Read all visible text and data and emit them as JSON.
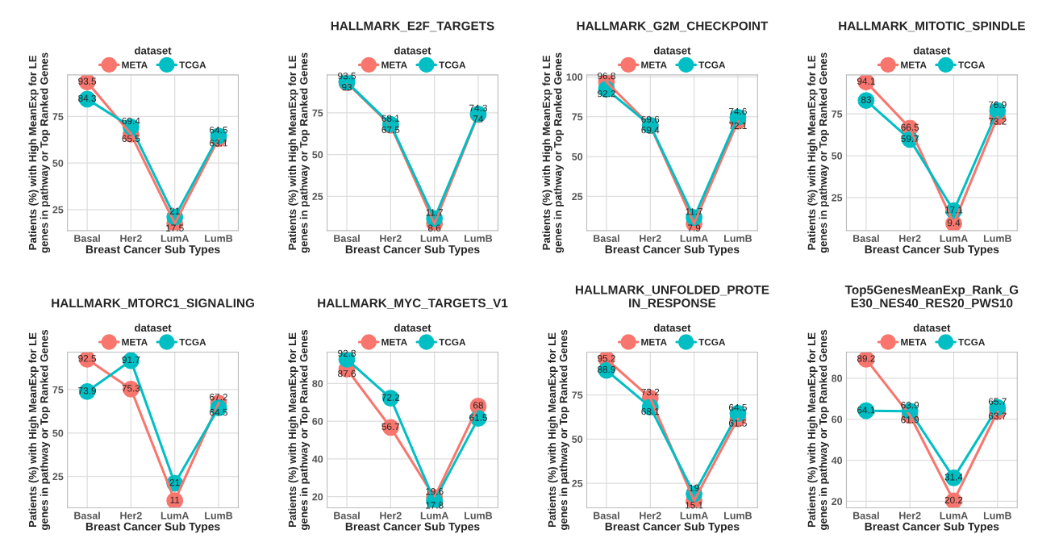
{
  "chart_data": [
    {
      "type": "line",
      "xlabel": "Breast Cancer Sub Types",
      "ylabel": "Patients (%) with High MeanExp for LE\ngenes in pathway or Top Ranked Genes",
      "legend_title": "dataset",
      "legend": "top",
      "grid": true,
      "marker": "circle",
      "data_labels": true,
      "categories": [
        "Basal",
        "Her2",
        "LumA",
        "LumB"
      ],
      "ylim": [
        13.7,
        97.3
      ],
      "yticks": [
        25,
        50,
        75
      ],
      "series": [
        {
          "name": "META",
          "color": "#f8766d",
          "values": [
            93.5,
            65.5,
            17.5,
            63.1
          ]
        },
        {
          "name": "TCGA",
          "color": "#00bfc4",
          "values": [
            84.3,
            69.4,
            21,
            64.5
          ]
        }
      ]
    },
    {
      "type": "line",
      "title": "HALLMARK_E2F_TARGETS",
      "xlabel": "Breast Cancer Sub Types",
      "ylabel": "Patients (%) with High MeanExp for LE\ngenes in pathway or Top Ranked Genes",
      "legend_title": "dataset",
      "legend": "top",
      "grid": true,
      "marker": "circle",
      "data_labels": true,
      "categories": [
        "Basal",
        "Her2",
        "LumA",
        "LumB"
      ],
      "ylim": [
        4.4,
        97.7
      ],
      "yticks": [
        25,
        50,
        75
      ],
      "series": [
        {
          "name": "META",
          "color": "#f8766d",
          "values": [
            93,
            67.5,
            8.6,
            74
          ]
        },
        {
          "name": "TCGA",
          "color": "#00bfc4",
          "values": [
            93.5,
            68.1,
            11.7,
            74.3
          ]
        }
      ]
    },
    {
      "type": "line",
      "title": "HALLMARK_G2M_CHECKPOINT",
      "xlabel": "Breast Cancer Sub Types",
      "ylabel": "Patients (%) with High MeanExp for LE\ngenes in pathway or Top Ranked Genes",
      "legend_title": "dataset",
      "legend": "top",
      "grid": true,
      "marker": "circle",
      "data_labels": true,
      "categories": [
        "Basal",
        "Her2",
        "LumA",
        "LumB"
      ],
      "ylim": [
        3.5,
        101.2
      ],
      "yticks": [
        25,
        50,
        75,
        100
      ],
      "series": [
        {
          "name": "META",
          "color": "#f8766d",
          "values": [
            96.8,
            69.4,
            7.9,
            72.1
          ]
        },
        {
          "name": "TCGA",
          "color": "#00bfc4",
          "values": [
            92.2,
            69.6,
            11.7,
            74.6
          ]
        }
      ]
    },
    {
      "type": "line",
      "title": "HALLMARK_MITOTIC_SPINDLE",
      "xlabel": "Breast Cancer Sub Types",
      "ylabel": "Patients (%) with High MeanExp for LE\ngenes in pathway or Top Ranked Genes",
      "legend_title": "dataset",
      "legend": "top",
      "grid": true,
      "marker": "circle",
      "data_labels": true,
      "categories": [
        "Basal",
        "Her2",
        "LumA",
        "LumB"
      ],
      "ylim": [
        5.2,
        98.3
      ],
      "yticks": [
        25,
        50,
        75
      ],
      "series": [
        {
          "name": "META",
          "color": "#f8766d",
          "values": [
            94.1,
            66.5,
            9.4,
            73.2
          ]
        },
        {
          "name": "TCGA",
          "color": "#00bfc4",
          "values": [
            83,
            59.7,
            17.1,
            76.9
          ]
        }
      ]
    },
    {
      "type": "line",
      "title": "HALLMARK_MTORC1_SIGNALING",
      "xlabel": "Breast Cancer Sub Types",
      "ylabel": "Patients (%) with High MeanExp for LE\ngenes in pathway or Top Ranked Genes",
      "legend_title": "dataset",
      "legend": "top",
      "grid": true,
      "marker": "circle",
      "data_labels": true,
      "categories": [
        "Basal",
        "Her2",
        "LumA",
        "LumB"
      ],
      "ylim": [
        6.9,
        96.6
      ],
      "yticks": [
        25,
        50,
        75
      ],
      "series": [
        {
          "name": "META",
          "color": "#f8766d",
          "values": [
            92.5,
            75.3,
            11,
            67.2
          ]
        },
        {
          "name": "TCGA",
          "color": "#00bfc4",
          "values": [
            73.9,
            91.7,
            21,
            64.5
          ]
        }
      ]
    },
    {
      "type": "line",
      "title": "HALLMARK_MYC_TARGETS_V1",
      "xlabel": "Breast Cancer Sub Types",
      "ylabel": "Patients (%) with High MeanExp for LE\ngenes in pathway or Top Ranked Genes",
      "legend_title": "dataset",
      "legend": "top",
      "grid": true,
      "marker": "circle",
      "data_labels": true,
      "categories": [
        "Basal",
        "Her2",
        "LumA",
        "LumB"
      ],
      "ylim": [
        14.1,
        96.6
      ],
      "yticks": [
        20,
        40,
        60,
        80
      ],
      "series": [
        {
          "name": "META",
          "color": "#f8766d",
          "values": [
            87.6,
            56.7,
            19.6,
            68
          ]
        },
        {
          "name": "TCGA",
          "color": "#00bfc4",
          "values": [
            92.8,
            72.2,
            17.8,
            61.5
          ]
        }
      ]
    },
    {
      "type": "line",
      "title": "HALLMARK_UNFOLDED_PROTE\nIN_RESPONSE",
      "xlabel": "Breast Cancer Sub Types",
      "ylabel": "Patients (%) with High MeanExp for LE\ngenes in pathway or Top Ranked Genes",
      "legend_title": "dataset",
      "legend": "top",
      "grid": true,
      "marker": "circle",
      "data_labels": true,
      "categories": [
        "Basal",
        "Her2",
        "LumA",
        "LumB"
      ],
      "ylim": [
        11.1,
        99.2
      ],
      "yticks": [
        25,
        50,
        75
      ],
      "series": [
        {
          "name": "META",
          "color": "#f8766d",
          "values": [
            95.2,
            73.2,
            15.1,
            61.5
          ]
        },
        {
          "name": "TCGA",
          "color": "#00bfc4",
          "values": [
            88.9,
            68.1,
            19,
            64.5
          ]
        }
      ]
    },
    {
      "type": "line",
      "title": "Top5GenesMeanExp_Rank_G\nE30_NES40_RES20_PWS10",
      "xlabel": "Breast Cancer Sub Types",
      "ylabel": "Patients (%) with High MeanExp for LE\ngenes in pathway or Top Ranked Genes",
      "legend_title": "dataset",
      "legend": "top",
      "grid": true,
      "marker": "circle",
      "data_labels": true,
      "categories": [
        "Basal",
        "Her2",
        "LumA",
        "LumB"
      ],
      "ylim": [
        16.8,
        92.7
      ],
      "yticks": [
        20,
        40,
        60,
        80
      ],
      "series": [
        {
          "name": "META",
          "color": "#f8766d",
          "values": [
            89.2,
            61.9,
            20.2,
            63.7
          ]
        },
        {
          "name": "TCGA",
          "color": "#00bfc4",
          "values": [
            64.1,
            63.9,
            31.4,
            65.7
          ]
        }
      ]
    }
  ]
}
